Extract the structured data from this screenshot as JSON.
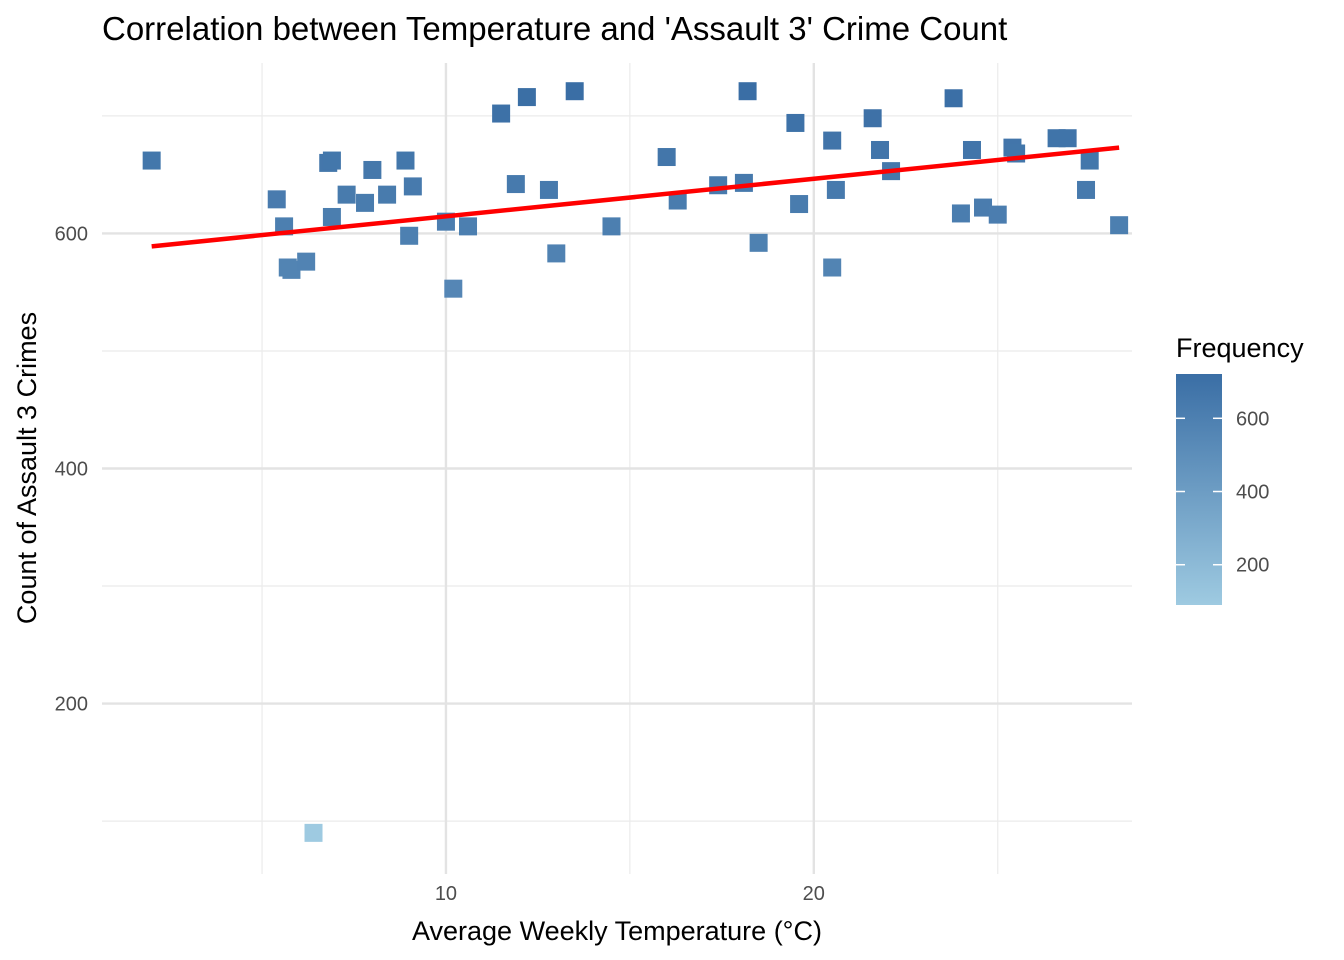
{
  "chart_data": {
    "type": "scatter",
    "title": "Correlation between Temperature and 'Assault 3' Crime Count",
    "xlabel": "Average Weekly Temperature (°C)",
    "ylabel": "Count of Assault 3 Crimes",
    "xlim": [
      0.65,
      28.65
    ],
    "ylim": [
      55,
      745
    ],
    "x_ticks": [
      10,
      20
    ],
    "x_minor_ticks": [
      5,
      15,
      25
    ],
    "y_ticks": [
      200,
      400,
      600
    ],
    "y_minor_ticks": [
      100,
      300,
      500,
      700
    ],
    "grid": true,
    "marker": "square",
    "points": [
      {
        "x": 2.0,
        "y": 662
      },
      {
        "x": 5.4,
        "y": 629
      },
      {
        "x": 5.6,
        "y": 606
      },
      {
        "x": 5.7,
        "y": 571
      },
      {
        "x": 5.8,
        "y": 569
      },
      {
        "x": 6.2,
        "y": 576
      },
      {
        "x": 6.4,
        "y": 90
      },
      {
        "x": 6.8,
        "y": 660
      },
      {
        "x": 6.9,
        "y": 662
      },
      {
        "x": 6.9,
        "y": 614
      },
      {
        "x": 7.3,
        "y": 633
      },
      {
        "x": 7.8,
        "y": 626
      },
      {
        "x": 8.0,
        "y": 654
      },
      {
        "x": 8.4,
        "y": 633
      },
      {
        "x": 8.9,
        "y": 662
      },
      {
        "x": 9.0,
        "y": 598
      },
      {
        "x": 9.1,
        "y": 640
      },
      {
        "x": 10.0,
        "y": 610
      },
      {
        "x": 10.2,
        "y": 553
      },
      {
        "x": 10.6,
        "y": 606
      },
      {
        "x": 11.5,
        "y": 702
      },
      {
        "x": 11.9,
        "y": 642
      },
      {
        "x": 12.2,
        "y": 716
      },
      {
        "x": 12.8,
        "y": 637
      },
      {
        "x": 13.0,
        "y": 583
      },
      {
        "x": 13.5,
        "y": 721
      },
      {
        "x": 14.5,
        "y": 606
      },
      {
        "x": 16.0,
        "y": 665
      },
      {
        "x": 16.3,
        "y": 628
      },
      {
        "x": 17.4,
        "y": 641
      },
      {
        "x": 18.1,
        "y": 643
      },
      {
        "x": 18.2,
        "y": 721
      },
      {
        "x": 18.5,
        "y": 592
      },
      {
        "x": 19.5,
        "y": 694
      },
      {
        "x": 19.6,
        "y": 625
      },
      {
        "x": 20.5,
        "y": 679
      },
      {
        "x": 20.5,
        "y": 571
      },
      {
        "x": 20.6,
        "y": 637
      },
      {
        "x": 21.6,
        "y": 698
      },
      {
        "x": 21.8,
        "y": 671
      },
      {
        "x": 22.1,
        "y": 653
      },
      {
        "x": 23.8,
        "y": 715
      },
      {
        "x": 24.0,
        "y": 617
      },
      {
        "x": 24.3,
        "y": 671
      },
      {
        "x": 24.6,
        "y": 622
      },
      {
        "x": 25.0,
        "y": 616
      },
      {
        "x": 25.4,
        "y": 673
      },
      {
        "x": 25.5,
        "y": 668
      },
      {
        "x": 26.6,
        "y": 681
      },
      {
        "x": 26.9,
        "y": 681
      },
      {
        "x": 27.4,
        "y": 637
      },
      {
        "x": 27.5,
        "y": 662
      },
      {
        "x": 28.3,
        "y": 607
      }
    ],
    "trend_line": {
      "color": "#ff0000",
      "x": [
        2.0,
        28.3
      ],
      "y": [
        589,
        673
      ]
    },
    "legend": {
      "title": "Frequency",
      "position": "right",
      "range": [
        90,
        721
      ],
      "ticks": [
        200,
        400,
        600
      ],
      "color_low": "#9ecae1",
      "color_high": "#3a6ea5"
    }
  }
}
